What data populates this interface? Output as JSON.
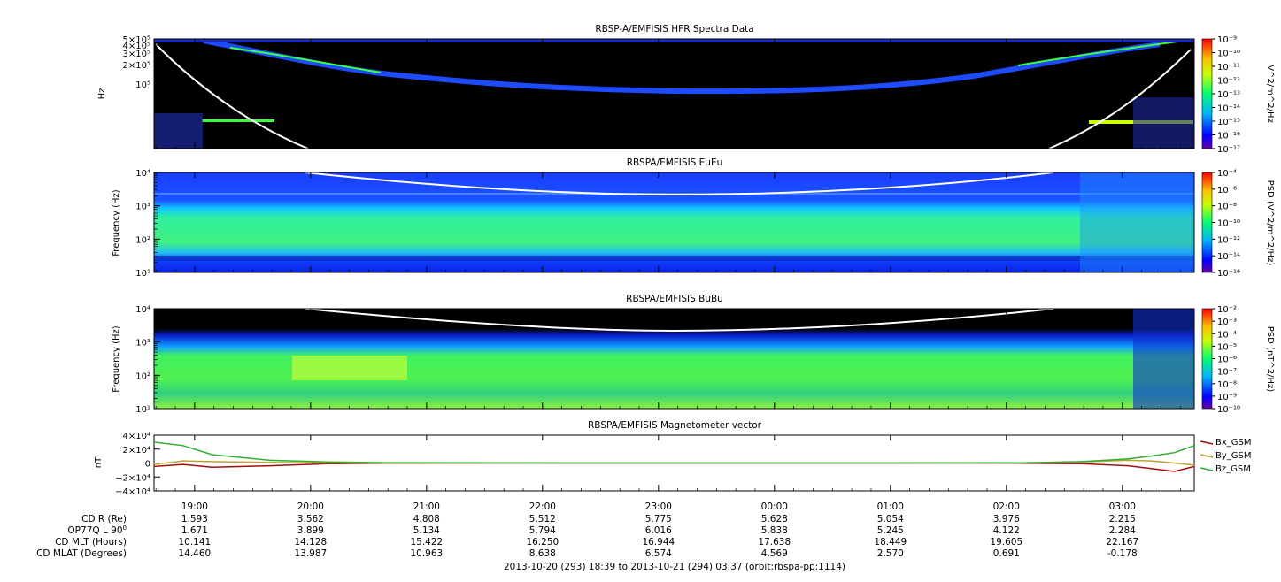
{
  "colors": {
    "background": "#000000",
    "deep_blue": "#0000ff",
    "blue": "#1e4bff",
    "cyan": "#00e0ff",
    "green": "#3cff3c",
    "yellow": "#ffff00",
    "red": "#ff0000",
    "white_line": "#ffffff",
    "bx": "#a01010",
    "by": "#c0a030",
    "bz": "#30b030"
  },
  "chart_data": [
    {
      "type": "heatmap",
      "title": "RBSP-A/EMFISIS  HFR Spectra Data",
      "ylabel": "Hz",
      "yscale": "log",
      "ylim": [
        10000,
        500000
      ],
      "yticks": [
        "5×10⁵",
        "4×10⁵",
        "3×10⁵",
        "2×10⁵",
        "10⁵"
      ],
      "colorbar_label": "V^2/m^2/Hz",
      "colorbar_ticks": [
        "10⁻⁹",
        "10⁻¹⁰",
        "10⁻¹¹",
        "10⁻¹²",
        "10⁻¹³",
        "10⁻¹⁴",
        "10⁻¹⁵",
        "10⁻¹⁶",
        "10⁻¹⁷"
      ]
    },
    {
      "type": "heatmap",
      "title": "RBSPA/EMFISIS  EuEu",
      "ylabel": "Frequency (Hz)",
      "yscale": "log",
      "ylim": [
        10,
        10000
      ],
      "yticks": [
        "10⁴",
        "10³",
        "10²",
        "10¹"
      ],
      "colorbar_label": "PSD (V^2/m^2/Hz)",
      "colorbar_ticks": [
        "10⁻⁴",
        "10⁻⁶",
        "10⁻⁸",
        "10⁻¹⁰",
        "10⁻¹²",
        "10⁻¹⁴",
        "10⁻¹⁶"
      ]
    },
    {
      "type": "heatmap",
      "title": "RBSPA/EMFISIS  BuBu",
      "ylabel": "Frequency (Hz)",
      "yscale": "log",
      "ylim": [
        10,
        10000
      ],
      "yticks": [
        "10⁴",
        "10³",
        "10²",
        "10¹"
      ],
      "colorbar_label": "PSD (nT^2/Hz)",
      "colorbar_ticks": [
        "10⁻²",
        "10⁻³",
        "10⁻⁴",
        "10⁻⁵",
        "10⁻⁶",
        "10⁻⁷",
        "10⁻⁸",
        "10⁻⁹",
        "10⁻¹⁰"
      ]
    },
    {
      "type": "line",
      "title": "RBSPA/EMFISIS  Magnetometer vector",
      "ylabel": "nT",
      "ylim": [
        -40000,
        40000
      ],
      "yticks": [
        "4×10⁴",
        "2×10⁴",
        "0",
        "−2×10⁴",
        "−4×10⁴"
      ],
      "x": [
        0,
        0.25,
        0.5,
        1.0,
        1.5,
        2.0,
        3.0,
        4.0,
        5.0,
        6.0,
        7.0,
        7.5,
        8.0,
        8.4,
        8.6,
        8.8,
        8.97
      ],
      "series": [
        {
          "name": "Bx_GSM",
          "color": "#a01010",
          "values": [
            -5000,
            -2000,
            -6000,
            -4000,
            -1000,
            -300,
            0,
            0,
            0,
            0,
            0,
            -200,
            -1000,
            -4000,
            -8000,
            -12000,
            -5000
          ]
        },
        {
          "name": "By_GSM",
          "color": "#c0a030",
          "values": [
            -2000,
            3000,
            2000,
            1000,
            0,
            0,
            0,
            0,
            0,
            0,
            0,
            200,
            1500,
            4000,
            3000,
            0,
            -3000
          ]
        },
        {
          "name": "Bz_GSM",
          "color": "#30b030",
          "values": [
            30000,
            25000,
            12000,
            4000,
            1500,
            500,
            100,
            0,
            0,
            0,
            100,
            400,
            2000,
            6000,
            10000,
            15000,
            25000
          ]
        }
      ]
    }
  ],
  "time_axis": {
    "ticks": [
      "19:00",
      "20:00",
      "21:00",
      "22:00",
      "23:00",
      "00:00",
      "01:00",
      "02:00",
      "03:00"
    ],
    "tick_hours_since_start": [
      0.35,
      1.35,
      2.35,
      3.35,
      4.35,
      5.35,
      6.35,
      7.35,
      8.35
    ],
    "span_hours": 8.97
  },
  "ephemeris": {
    "rows": [
      {
        "label": "CD R (Re)",
        "values": [
          "1.593",
          "3.562",
          "4.808",
          "5.512",
          "5.775",
          "5.628",
          "5.054",
          "3.976",
          "2.215"
        ]
      },
      {
        "label": "OP77Q L 90",
        "label_sup": "0",
        "values": [
          "1.671",
          "3.899",
          "5.134",
          "5.794",
          "6.016",
          "5.838",
          "5.245",
          "4.122",
          "2.284"
        ]
      },
      {
        "label": "CD MLT (Hours)",
        "values": [
          "10.141",
          "14.128",
          "15.422",
          "16.250",
          "16.944",
          "17.638",
          "18.449",
          "19.605",
          "22.167"
        ]
      },
      {
        "label": "CD MLAT (Degrees)",
        "values": [
          "14.460",
          "13.987",
          "10.963",
          "8.638",
          "6.574",
          "4.569",
          "2.570",
          "0.691",
          "-0.178"
        ]
      }
    ]
  },
  "footer": "2013-10-20 (293) 18:39 to 2013-10-21 (294) 03:37 (orbit:rbspa-pp:1114)"
}
